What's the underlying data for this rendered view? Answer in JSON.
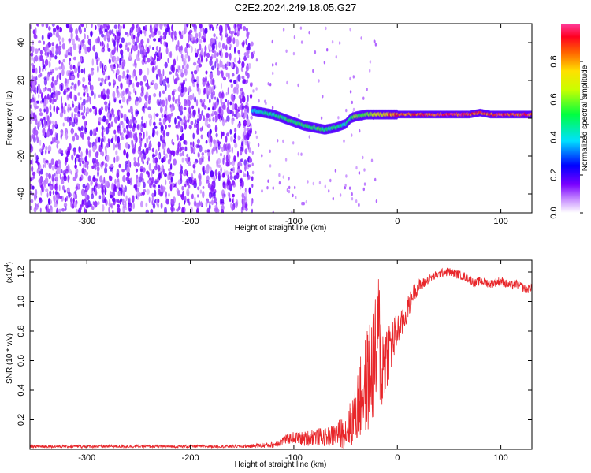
{
  "title": "C2E2.2024.249.18.05.G27",
  "chart_data": [
    {
      "type": "heatmap",
      "xlabel": "Height of straight line (km)",
      "ylabel": "Frequency (Hz)",
      "xlim": [
        -355,
        130
      ],
      "ylim": [
        -50,
        50
      ],
      "x_ticks": [
        -300,
        -200,
        -100,
        0,
        100
      ],
      "y_ticks": [
        -40,
        -20,
        0,
        20,
        40
      ],
      "x_tick_labels": [
        "-300",
        "-200",
        "-100",
        "0",
        "100"
      ],
      "y_tick_labels": [
        "-40",
        "-20",
        "0",
        "20",
        "40"
      ],
      "colorbar": {
        "label": "Normalized spectral amplitude",
        "range": [
          0,
          1
        ],
        "ticks": [
          0.0,
          0.2,
          0.4,
          0.6,
          0.8
        ],
        "tick_labels": [
          "0.0",
          "0.2",
          "0.4",
          "0.6",
          "0.8"
        ],
        "colormap": "rainbow (white-violet-blue-cyan-green-yellow-red-pink)"
      },
      "noise_region_x": [
        -355,
        -140
      ],
      "signal_ridge": {
        "x": [
          -140,
          -130,
          -120,
          -110,
          -100,
          -90,
          -80,
          -70,
          -60,
          -50,
          -45,
          -40,
          -30,
          -20,
          -10,
          0,
          20,
          40,
          60,
          70,
          80,
          90,
          100,
          110,
          120,
          130
        ],
        "y": [
          4,
          3,
          2,
          0,
          -2,
          -4,
          -5,
          -6,
          -5,
          -3,
          0,
          1,
          2,
          2,
          2,
          2,
          2,
          2,
          2,
          2,
          3,
          2,
          2,
          2,
          2,
          2
        ],
        "amplitude": [
          0.4,
          0.45,
          0.5,
          0.5,
          0.55,
          0.55,
          0.55,
          0.5,
          0.5,
          0.45,
          0.5,
          0.6,
          0.6,
          0.75,
          0.8,
          0.9,
          0.95,
          0.95,
          0.95,
          0.95,
          0.9,
          0.9,
          0.95,
          0.95,
          0.95,
          0.95
        ]
      },
      "grid": false
    },
    {
      "type": "line",
      "xlabel": "Height of straight line (km)",
      "ylabel": "SNR (10 * v/v)",
      "y_scale_label": "(x10",
      "y_scale_exponent": "4",
      "y_scale_suffix": ")",
      "xlim": [
        -355,
        130
      ],
      "ylim": [
        0,
        1.28
      ],
      "x_ticks": [
        -300,
        -200,
        -100,
        0,
        100
      ],
      "y_ticks": [
        0.2,
        0.4,
        0.6,
        0.8,
        1.0,
        1.2
      ],
      "x_tick_labels": [
        "-300",
        "-200",
        "-100",
        "0",
        "100"
      ],
      "y_tick_labels": [
        "0.2",
        "0.4",
        "0.6",
        "0.8",
        "1.0",
        "1.2"
      ],
      "series": [
        {
          "color": "#e8262a",
          "x": [
            -355,
            -300,
            -250,
            -200,
            -150,
            -120,
            -110,
            -100,
            -90,
            -80,
            -70,
            -60,
            -50,
            -45,
            -40,
            -35,
            -30,
            -25,
            -20,
            -18,
            -15,
            -10,
            -5,
            0,
            5,
            10,
            15,
            20,
            25,
            30,
            35,
            40,
            45,
            50,
            55,
            60,
            65,
            70,
            75,
            80,
            85,
            90,
            95,
            100,
            105,
            110,
            115,
            120,
            125,
            130
          ],
          "y": [
            0.02,
            0.02,
            0.02,
            0.02,
            0.02,
            0.03,
            0.06,
            0.08,
            0.07,
            0.09,
            0.08,
            0.1,
            0.12,
            0.18,
            0.25,
            0.35,
            0.45,
            0.55,
            0.6,
            0.8,
            0.55,
            0.65,
            0.72,
            0.8,
            0.85,
            0.95,
            1.05,
            1.1,
            1.12,
            1.15,
            1.17,
            1.18,
            1.2,
            1.2,
            1.19,
            1.18,
            1.17,
            1.15,
            1.12,
            1.14,
            1.13,
            1.12,
            1.13,
            1.14,
            1.12,
            1.11,
            1.12,
            1.1,
            1.08,
            1.1
          ],
          "noise_amplitude": [
            0.01,
            0.01,
            0.01,
            0.01,
            0.01,
            0.02,
            0.03,
            0.04,
            0.05,
            0.06,
            0.06,
            0.08,
            0.12,
            0.16,
            0.22,
            0.3,
            0.35,
            0.4,
            0.45,
            0.45,
            0.35,
            0.25,
            0.18,
            0.12,
            0.1,
            0.08,
            0.06,
            0.05,
            0.04,
            0.03,
            0.03,
            0.03,
            0.03,
            0.03,
            0.03,
            0.03,
            0.03,
            0.03,
            0.03,
            0.03,
            0.03,
            0.03,
            0.03,
            0.03,
            0.03,
            0.03,
            0.03,
            0.03,
            0.03,
            0.03
          ]
        }
      ],
      "grid": false
    }
  ]
}
